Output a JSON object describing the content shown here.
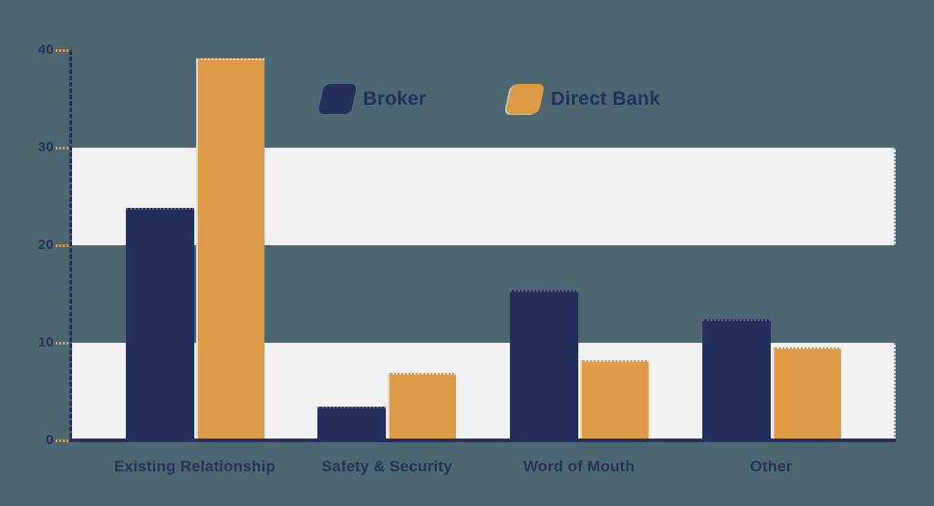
{
  "legend": {
    "items": [
      {
        "label": "Broker",
        "color": "#232f5c"
      },
      {
        "label": "Direct Bank",
        "color": "#de9a43"
      }
    ]
  },
  "chart_data": {
    "type": "bar",
    "title": "",
    "xlabel": "",
    "ylabel": "",
    "categories": [
      "Existing Relationship",
      "Safety & Security",
      "Word of Mouth",
      "Other"
    ],
    "series": [
      {
        "name": "Broker",
        "color": "#232f5c",
        "values": [
          23.8,
          3.5,
          15.4,
          12.4
        ]
      },
      {
        "name": "Direct Bank",
        "color": "#de9a43",
        "values": [
          39.2,
          6.9,
          8.2,
          9.5
        ]
      }
    ],
    "y_ticks": [
      0,
      10,
      20,
      30,
      40
    ],
    "ylim": [
      0,
      40
    ],
    "bands": [
      [
        20,
        30
      ],
      [
        0,
        10
      ]
    ],
    "grid": false,
    "legend_position": "top-center",
    "colors": {
      "background": "#4d6772",
      "band": "#f1f1f2",
      "axis": "#27335e",
      "tick_dash": "#de9a43",
      "text": "#2b3157"
    }
  }
}
